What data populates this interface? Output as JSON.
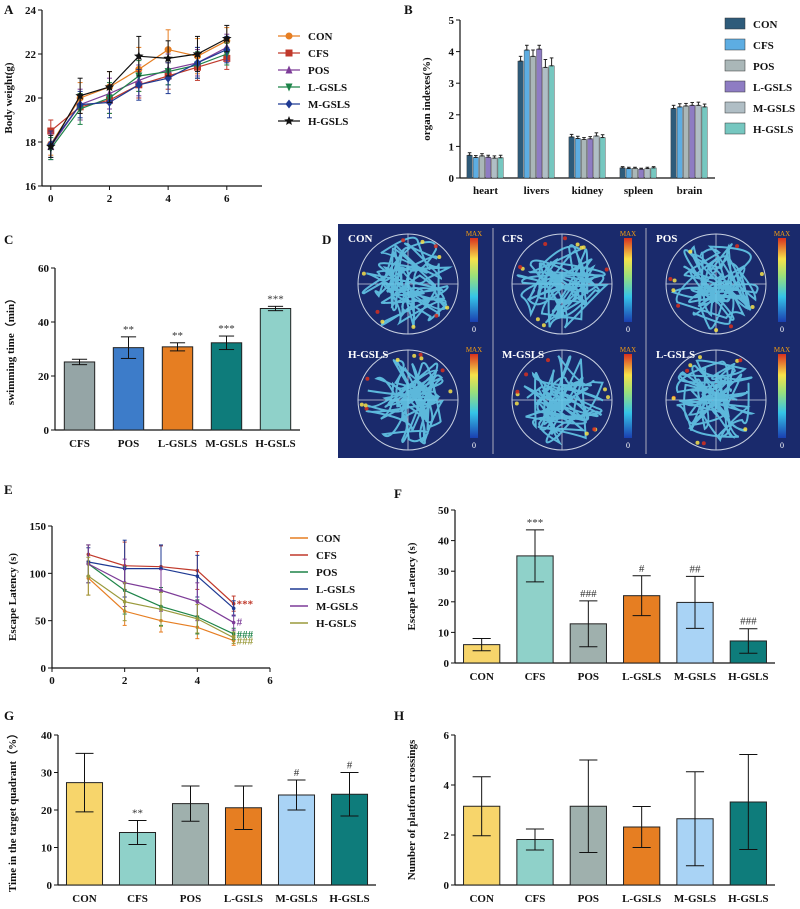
{
  "panels": {
    "A": "A",
    "B": "B",
    "C": "C",
    "D": "D",
    "E": "E",
    "F": "F",
    "G": "G",
    "H": "H"
  },
  "chart_data": [
    {
      "id": "A",
      "type": "line",
      "title": "",
      "xlabel": "",
      "ylabel": "Body weight(g)",
      "xlim": [
        -0.3,
        7.2
      ],
      "ylim": [
        16,
        24
      ],
      "xticks": [
        0,
        2,
        4,
        6
      ],
      "yticks": [
        16,
        18,
        20,
        22,
        24
      ],
      "x": [
        0,
        1,
        2,
        3,
        4,
        5,
        6
      ],
      "series": [
        {
          "name": "CON",
          "color": "#e67e22",
          "marker": "circle",
          "values": [
            17.9,
            20.0,
            20.5,
            21.3,
            22.2,
            21.9,
            22.6
          ],
          "err": [
            0.5,
            0.7,
            0.7,
            1.0,
            0.9,
            0.8,
            0.6
          ]
        },
        {
          "name": "CFS",
          "color": "#c0392b",
          "marker": "square",
          "values": [
            18.5,
            19.6,
            19.9,
            20.6,
            21.0,
            21.4,
            21.8
          ],
          "err": [
            0.5,
            0.6,
            0.6,
            0.6,
            0.6,
            0.6,
            0.5
          ]
        },
        {
          "name": "POS",
          "color": "#7d3c98",
          "marker": "triangle",
          "values": [
            17.8,
            19.7,
            20.2,
            20.8,
            21.3,
            21.6,
            22.3
          ],
          "err": [
            0.6,
            0.7,
            0.7,
            0.7,
            0.7,
            0.6,
            0.6
          ]
        },
        {
          "name": "L-GSLS",
          "color": "#1e8449",
          "marker": "tri-down",
          "values": [
            17.7,
            19.5,
            20.0,
            21.0,
            21.2,
            21.5,
            22.0
          ],
          "err": [
            0.5,
            0.7,
            0.7,
            0.7,
            0.6,
            0.6,
            0.5
          ]
        },
        {
          "name": "M-GSLS",
          "color": "#1f3a93",
          "marker": "diamond",
          "values": [
            17.9,
            19.7,
            19.8,
            20.6,
            20.9,
            21.6,
            22.2
          ],
          "err": [
            0.6,
            0.6,
            0.7,
            0.7,
            0.7,
            0.7,
            0.6
          ]
        },
        {
          "name": "H-GSLS",
          "color": "#111111",
          "marker": "star",
          "values": [
            17.8,
            20.1,
            20.5,
            21.9,
            21.8,
            22.0,
            22.7
          ],
          "err": [
            0.5,
            0.8,
            0.7,
            0.9,
            0.8,
            0.8,
            0.6
          ]
        }
      ]
    },
    {
      "id": "B",
      "type": "bar",
      "title": "",
      "xlabel": "",
      "ylabel": "organ indexes(%)",
      "ylim": [
        0,
        5
      ],
      "yticks": [
        0,
        1,
        2,
        3,
        4,
        5
      ],
      "categories": [
        "heart",
        "livers",
        "kidney",
        "spleen",
        "brain"
      ],
      "series": [
        {
          "name": "CON",
          "color": "#2e5b7a",
          "values": [
            0.72,
            3.7,
            1.3,
            0.32,
            2.2
          ],
          "err": [
            0.08,
            0.15,
            0.08,
            0.04,
            0.1
          ]
        },
        {
          "name": "CFS",
          "color": "#5dade2",
          "values": [
            0.65,
            4.05,
            1.25,
            0.3,
            2.25
          ],
          "err": [
            0.06,
            0.15,
            0.07,
            0.04,
            0.1
          ]
        },
        {
          "name": "POS",
          "color": "#aab7b8",
          "values": [
            0.7,
            3.85,
            1.22,
            0.31,
            2.28
          ],
          "err": [
            0.07,
            0.2,
            0.06,
            0.03,
            0.08
          ]
        },
        {
          "name": "L-GSLS",
          "color": "#8e7cc3",
          "values": [
            0.66,
            4.08,
            1.24,
            0.28,
            2.3
          ],
          "err": [
            0.06,
            0.12,
            0.07,
            0.03,
            0.09
          ]
        },
        {
          "name": "M-GSLS",
          "color": "#b0bec5",
          "values": [
            0.63,
            3.5,
            1.33,
            0.3,
            2.3
          ],
          "err": [
            0.07,
            0.25,
            0.1,
            0.04,
            0.1
          ]
        },
        {
          "name": "H-GSLS",
          "color": "#76c7c0",
          "values": [
            0.64,
            3.55,
            1.28,
            0.32,
            2.25
          ],
          "err": [
            0.08,
            0.25,
            0.09,
            0.04,
            0.09
          ]
        }
      ]
    },
    {
      "id": "C",
      "type": "bar",
      "title": "",
      "xlabel": "",
      "ylabel": "swimming time（min）",
      "ylim": [
        0,
        60
      ],
      "yticks": [
        0,
        20,
        40,
        60
      ],
      "categories": [
        "CFS",
        "POS",
        "L-GSLS",
        "M-GSLS",
        "H-GSLS"
      ],
      "values": [
        25.2,
        30.5,
        30.8,
        32.3,
        45.0
      ],
      "err": [
        1.0,
        4.0,
        1.5,
        2.5,
        0.8
      ],
      "colors": [
        "#95a5a6",
        "#3d7cc9",
        "#e67e22",
        "#0e7c7b",
        "#8fd1c9"
      ],
      "annotations": [
        "",
        "**",
        "**",
        "***",
        "***"
      ]
    },
    {
      "id": "E",
      "type": "line",
      "title": "",
      "xlabel": "",
      "ylabel": "Escape Latency (s)",
      "xlim": [
        0,
        6
      ],
      "ylim": [
        0,
        150
      ],
      "xticks": [
        0,
        2,
        4,
        6
      ],
      "yticks": [
        0,
        50,
        100,
        150
      ],
      "x": [
        1,
        2,
        3,
        4,
        5
      ],
      "series": [
        {
          "name": "CON",
          "color": "#e67e22",
          "values": [
            95,
            60,
            50,
            43,
            29
          ],
          "err": [
            18,
            15,
            12,
            12,
            5
          ]
        },
        {
          "name": "CFS",
          "color": "#c0392b",
          "values": [
            120,
            108,
            107,
            103,
            68
          ],
          "err": [
            10,
            25,
            22,
            20,
            8
          ]
        },
        {
          "name": "POS",
          "color": "#1e8449",
          "values": [
            110,
            82,
            65,
            54,
            36
          ],
          "err": [
            20,
            25,
            20,
            18,
            6
          ]
        },
        {
          "name": "L-GSLS",
          "color": "#1f3a93",
          "values": [
            112,
            105,
            105,
            97,
            63
          ],
          "err": [
            15,
            30,
            25,
            22,
            8
          ]
        },
        {
          "name": "M-GSLS",
          "color": "#7d3c98",
          "values": [
            110,
            90,
            82,
            70,
            48
          ],
          "err": [
            20,
            25,
            22,
            20,
            8
          ]
        },
        {
          "name": "H-GSLS",
          "color": "#9a9a3c",
          "values": [
            97,
            70,
            62,
            52,
            32
          ],
          "err": [
            20,
            20,
            18,
            15,
            6
          ]
        }
      ],
      "annotations": [
        {
          "text": "***",
          "color": "#c0392b",
          "x": 5,
          "y": 68
        },
        {
          "text": "#",
          "color": "#7d3c98",
          "x": 5,
          "y": 49
        },
        {
          "text": "###",
          "color": "#1e8449",
          "x": 5,
          "y": 36
        },
        {
          "text": "###",
          "color": "#9a9a3c",
          "x": 5,
          "y": 29
        }
      ]
    },
    {
      "id": "F",
      "type": "bar",
      "title": "",
      "xlabel": "",
      "ylabel": "Escape Latency (s)",
      "ylim": [
        0,
        50
      ],
      "yticks": [
        0,
        10,
        20,
        30,
        40,
        50
      ],
      "categories": [
        "CON",
        "CFS",
        "POS",
        "L-GSLS",
        "M-GSLS",
        "H-GSLS"
      ],
      "values": [
        6,
        35,
        12.8,
        22,
        19.8,
        7.2
      ],
      "err": [
        2,
        8.5,
        7.5,
        6.5,
        8.5,
        4
      ],
      "colors": [
        "#f7d56b",
        "#8fd1c9",
        "#9fb0ad",
        "#e67e22",
        "#a9d3f5",
        "#0e7c7b"
      ],
      "annotations": [
        "",
        "***",
        "###",
        "#",
        "##",
        "###"
      ]
    },
    {
      "id": "G",
      "type": "bar",
      "title": "",
      "xlabel": "",
      "ylabel": "Time in the target quadrant（%）",
      "ylim": [
        0,
        40
      ],
      "yticks": [
        0,
        10,
        20,
        30,
        40
      ],
      "categories": [
        "CON",
        "CFS",
        "POS",
        "L-GSLS",
        "M-GSLS",
        "H-GSLS"
      ],
      "values": [
        27.3,
        14.0,
        21.7,
        20.6,
        24.0,
        24.2
      ],
      "err": [
        7.8,
        3.2,
        4.7,
        5.8,
        4.0,
        5.8
      ],
      "colors": [
        "#f7d56b",
        "#8fd1c9",
        "#9fb0ad",
        "#e67e22",
        "#a9d3f5",
        "#0e7c7b"
      ],
      "annotations": [
        "",
        "**",
        "",
        "",
        "#",
        "#"
      ]
    },
    {
      "id": "H",
      "type": "bar",
      "title": "",
      "xlabel": "",
      "ylabel": "Number of platform crossings",
      "ylim": [
        0,
        6
      ],
      "yticks": [
        0,
        2,
        4,
        6
      ],
      "categories": [
        "CON",
        "CFS",
        "POS",
        "L-GSLS",
        "M-GSLS",
        "H-GSLS"
      ],
      "values": [
        3.15,
        1.82,
        3.15,
        2.32,
        2.65,
        3.32
      ],
      "err": [
        1.18,
        0.42,
        1.85,
        0.82,
        1.88,
        1.9
      ],
      "colors": [
        "#f7d56b",
        "#8fd1c9",
        "#9fb0ad",
        "#e67e22",
        "#a9d3f5",
        "#0e7c7b"
      ],
      "annotations": [
        "",
        "",
        "",
        "",
        "",
        ""
      ]
    }
  ],
  "heatmaps": {
    "colors": {
      "background": "#1a2a6c",
      "track": "#64c8e8"
    },
    "scale": {
      "max_label": "MAX",
      "min_label": "0"
    },
    "tiles": [
      {
        "label": "CON"
      },
      {
        "label": "CFS"
      },
      {
        "label": "POS"
      },
      {
        "label": "H-GSLS"
      },
      {
        "label": "M-GSLS"
      },
      {
        "label": "L-GSLS"
      }
    ]
  }
}
